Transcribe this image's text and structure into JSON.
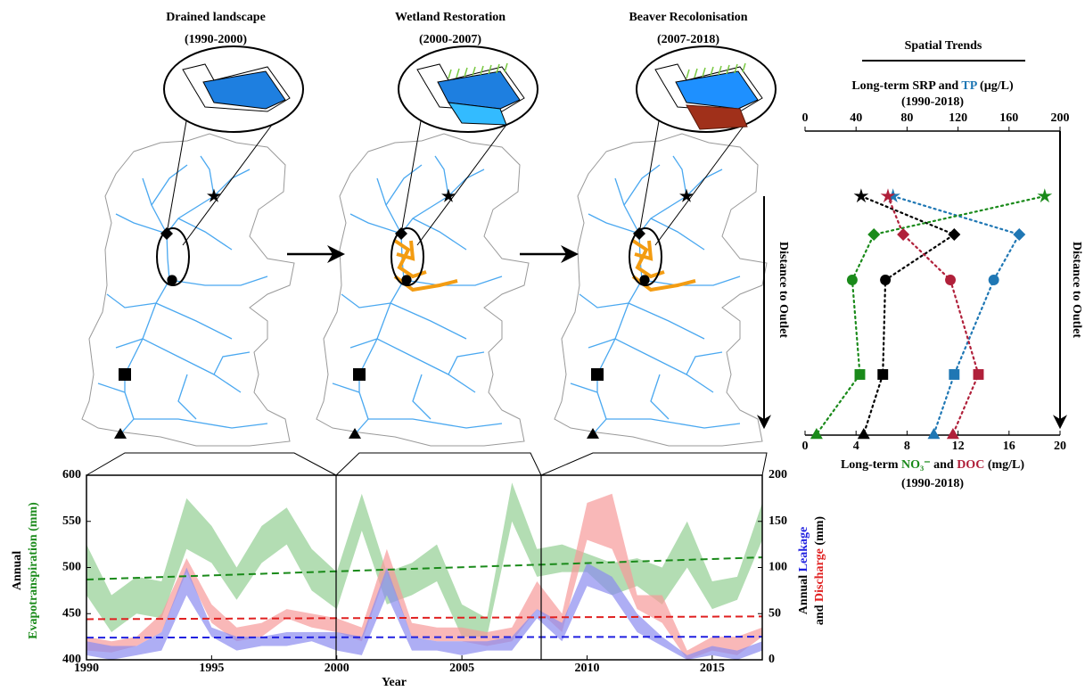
{
  "panels": [
    {
      "title": "Drained landscape",
      "period": "(1990-2000)"
    },
    {
      "title": "Wetland Restoration",
      "period": "(2000-2007)"
    },
    {
      "title": "Beaver Recolonisation",
      "period": "(2007-2018)"
    }
  ],
  "chart_data": [
    {
      "type": "band",
      "x_label": "Year",
      "y_label": [
        [
          {
            "text": "Annual"
          }
        ],
        [
          {
            "text": "Evapotranspiration (mm)",
            "color": "#1a8a1a"
          }
        ]
      ],
      "y2_label": [
        [
          {
            "text": "Annual "
          },
          {
            "text": "Leakage",
            "color": "#2020e0"
          }
        ],
        [
          {
            "text": "and "
          },
          {
            "text": "Discharge",
            "color": "#e02020"
          },
          {
            "text": " (mm)"
          }
        ]
      ],
      "x": [
        1990,
        1991,
        1992,
        1993,
        1994,
        1995,
        1996,
        1997,
        1998,
        1999,
        2000,
        2001,
        2002,
        2003,
        2004,
        2005,
        2006,
        2007,
        2008,
        2009,
        2010,
        2011,
        2012,
        2013,
        2014,
        2015,
        2016,
        2017
      ],
      "xlim": [
        1990,
        2017
      ],
      "xticks": [
        1990,
        1995,
        2000,
        2005,
        2010,
        2015
      ],
      "ylim": [
        400,
        600
      ],
      "yticks": [
        400,
        450,
        500,
        550,
        600
      ],
      "y2lim": [
        0,
        200
      ],
      "y2ticks": [
        0,
        50,
        100,
        150,
        200
      ],
      "series": [
        {
          "color": "#93cf93",
          "lower": [
            470,
            430,
            450,
            445,
            520,
            505,
            465,
            505,
            525,
            475,
            455,
            540,
            460,
            470,
            485,
            425,
            425,
            550,
            490,
            495,
            495,
            470,
            480,
            460,
            500,
            455,
            465,
            530
          ],
          "upper": [
            525,
            470,
            490,
            485,
            575,
            545,
            500,
            545,
            565,
            520,
            495,
            580,
            495,
            505,
            525,
            460,
            445,
            592,
            520,
            525,
            515,
            505,
            510,
            500,
            550,
            485,
            490,
            570
          ]
        },
        {
          "color": "#f79a9a",
          "axis": "y2",
          "lower": [
            10,
            8,
            15,
            30,
            95,
            40,
            20,
            25,
            45,
            35,
            30,
            20,
            95,
            25,
            20,
            20,
            15,
            20,
            55,
            30,
            130,
            120,
            55,
            40,
            0,
            10,
            5,
            25
          ],
          "upper": [
            25,
            20,
            25,
            50,
            110,
            60,
            35,
            40,
            55,
            50,
            45,
            35,
            120,
            40,
            35,
            35,
            30,
            35,
            85,
            50,
            170,
            180,
            70,
            70,
            10,
            25,
            25,
            35
          ]
        },
        {
          "color": "#8c8cf0",
          "axis": "y2",
          "lower": [
            5,
            0,
            5,
            10,
            70,
            25,
            10,
            15,
            15,
            20,
            10,
            5,
            70,
            10,
            10,
            5,
            10,
            10,
            45,
            20,
            80,
            70,
            30,
            15,
            0,
            5,
            0,
            10
          ],
          "upper": [
            20,
            15,
            15,
            30,
            100,
            35,
            25,
            25,
            30,
            30,
            30,
            25,
            100,
            25,
            20,
            20,
            20,
            25,
            55,
            40,
            105,
            90,
            50,
            25,
            5,
            15,
            10,
            20
          ]
        },
        {
          "color": "#1a8a1a",
          "dashed": true,
          "x": [
            1990,
            2017
          ],
          "values": [
            487,
            511
          ]
        },
        {
          "color": "#e02020",
          "dashed": true,
          "axis": "y2",
          "x": [
            1990,
            2017
          ],
          "values": [
            44,
            47
          ]
        },
        {
          "color": "#2020e0",
          "dashed": true,
          "axis": "y2",
          "x": [
            1990,
            2017
          ],
          "values": [
            24,
            25
          ]
        }
      ]
    },
    {
      "type": "line",
      "title": "Spatial Trends",
      "x2_label": [
        {
          "text": "Long-term "
        },
        {
          "text": "SRP",
          "color": "#000000"
        },
        {
          "text": " and "
        },
        {
          "text": "TP",
          "color": "#1f77b4"
        },
        {
          "text": " (µg/L)"
        }
      ],
      "x2_sublabel": "(1990-2018)",
      "x_label": [
        {
          "text": "Long-term "
        },
        {
          "text": "NO₃⁻",
          "color": "#1a8a1a"
        },
        {
          "text": " and "
        },
        {
          "text": "DOC",
          "color": "#b0203a"
        },
        {
          "text": " (mg/L)"
        }
      ],
      "x_sublabel": "(1990-2018)",
      "y_label": "Distance to Outlet",
      "y2_label": "Distance to Outlet",
      "markers": [
        "star",
        "diamond",
        "circle",
        "square",
        "triangle"
      ],
      "xlim": [
        0,
        20
      ],
      "xticks": [
        0,
        4,
        8,
        12,
        16,
        20
      ],
      "x2lim": [
        0,
        200
      ],
      "x2ticks": [
        0,
        40,
        80,
        120,
        160,
        200
      ],
      "series": [
        {
          "color": "#000000",
          "axis": "x2",
          "values": [
            44,
            117,
            63,
            61,
            46
          ]
        },
        {
          "color": "#1f77b4",
          "axis": "x2",
          "values": [
            69,
            168,
            148,
            117,
            101
          ]
        },
        {
          "color": "#1a8a1a",
          "values": [
            18.8,
            5.4,
            3.7,
            4.3,
            0.9
          ]
        },
        {
          "color": "#b0203a",
          "values": [
            6.5,
            7.7,
            11.4,
            13.6,
            11.6
          ]
        }
      ]
    }
  ]
}
